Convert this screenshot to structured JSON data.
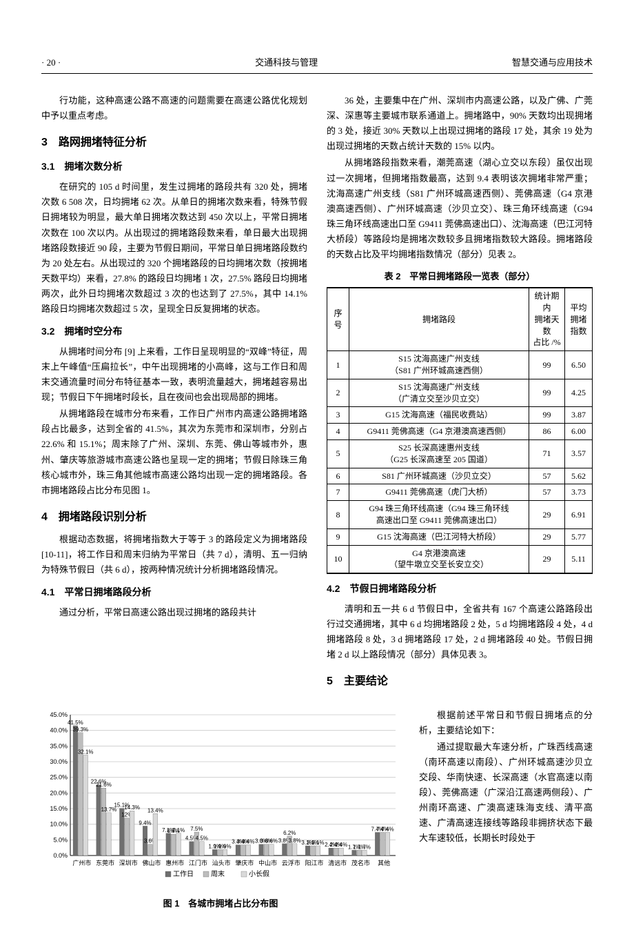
{
  "header": {
    "left": "· 20 ·",
    "center": "交通科技与管理",
    "right": "智慧交通与应用技术"
  },
  "left_column": {
    "p0": "行功能，这种高速公路不高速的问题需要在高速公路优化规划中予以重点考虑。",
    "sec3": "3　路网拥堵特征分析",
    "sub31": "3.1　拥堵次数分析",
    "p31a": "在研究的 105 d 时间里，发生过拥堵的路段共有 320 处，拥堵次数 6 508 次，日均拥堵 62 次。从单日的拥堵次数来看，特殊节假日拥堵较为明显，最大单日拥堵次数达到 450 次以上，平常日拥堵次数在 100 次以内。从出现过的拥堵路段数来看，单日最大出现拥堵路段数接近 90 段，主要为节假日期间，平常日单日拥堵路段数约为 20 处左右。从出现过的 320 个拥堵路段的日均拥堵次数（按拥堵天数平均）来看，27.8% 的路段日均拥堵 1 次，27.5% 路段日均拥堵两次，此外日均拥堵次数超过 3 次的也达到了 27.5%，其中 14.1% 路段日均拥堵次数超过 5 次，呈现全日反复拥堵的状态。",
    "sub32": "3.2　拥堵时空分布",
    "p32a": "从拥堵时间分布 [9] 上来看，工作日呈现明显的“双峰”特征，周末上午峰值“压扁拉长”，中午出现拥堵的小高峰，这与工作日和周末交通流量时间分布特征基本一致，表明流量越大，拥堵越容易出现；节假日下午拥堵时段长，且在夜间也会出现局部的拥堵。",
    "p32b": "从拥堵路段在城市分布来看，工作日广州市内高速公路拥堵路段占比最多，达到全省的 41.5%，其次为东莞市和深圳市，分别占 22.6% 和 15.1%；周末除了广州、深圳、东莞、佛山等城市外，惠州、肇庆等旅游城市高速公路也呈现一定的拥堵；节假日除珠三角核心城市外，珠三角其他城市高速公路均出现一定的拥堵路段。各市拥堵路段占比分布见图 1。",
    "sec4": "4　拥堵路段识别分析",
    "p4a": "根据动态数据，将拥堵指数大于等于 3 的路段定义为拥堵路段 [10-11]，将工作日和周末归纳为平常日（共 7 d），清明、五一归纳为特殊节假日（共 6 d），按两种情况统计分析拥堵路段情况。",
    "sub41": "4.1　平常日拥堵路段分析",
    "p41a": "通过分析，平常日高速公路出现过拥堵的路段共计"
  },
  "right_column": {
    "p_r1": "36 处，主要集中在广州、深圳市内高速公路，以及广佛、广莞深、深惠等主要城市联系通道上。拥堵路中，90% 天数均出现拥堵的 3 处，接近 30% 天数以上出现过拥堵的路段 17 处，其余 19 处为出现过拥堵的天数占统计天数的 15% 以内。",
    "p_r2": "从拥堵路段指数来看，潮莞高速（湖心立交以东段）虽仅出现过一次拥堵，但拥堵指数最高，达到 9.4 表明该次拥堵非常严重；沈海高速广州支线（S81 广州环城高速西侧）、莞佛高速（G4 京港澳高速西侧）、广州环城高速（沙贝立交）、珠三角环线高速（G94 珠三角环线高速出口至 G9411 莞佛高速出口）、沈海高速（巴江河特大桥段）等路段均是拥堵次数较多且拥堵指数较大路段。拥堵路段的天数占比及平均拥堵指数情况（部分）见表 2。",
    "table2": {
      "caption": "表 2　平常日拥堵路段一览表（部分）",
      "cols": [
        "序号",
        "拥堵路段",
        "统计期内\n拥堵天数\n占比 /%",
        "平均\n拥堵\n指数"
      ],
      "rows": [
        [
          "1",
          "S15 沈海高速广州支线\n（S81 广州环城高速西侧）",
          "99",
          "6.50"
        ],
        [
          "2",
          "S15 沈海高速广州支线\n（广清立交至沙贝立交）",
          "99",
          "4.25"
        ],
        [
          "3",
          "G15 沈海高速（福民收费站）",
          "99",
          "3.87"
        ],
        [
          "4",
          "G9411 莞佛高速（G4 京港澳高速西侧）",
          "86",
          "6.00"
        ],
        [
          "5",
          "S25 长深高速惠州支线\n（G25 长深高速至 205 国道）",
          "71",
          "3.57"
        ],
        [
          "6",
          "S81 广州环城高速（沙贝立交）",
          "57",
          "5.62"
        ],
        [
          "7",
          "G9411 莞佛高速（虎门大桥）",
          "57",
          "3.73"
        ],
        [
          "8",
          "G94 珠三角环线高速（G94 珠三角环线\n高速出口至 G9411 莞佛高速出口）",
          "29",
          "6.91"
        ],
        [
          "9",
          "G15 沈海高速（巴江河特大桥段）",
          "29",
          "5.77"
        ],
        [
          "10",
          "G4 京港澳高速\n（望牛墩立交至长安立交）",
          "29",
          "5.11"
        ]
      ]
    },
    "sub42": "4.2　节假日拥堵路段分析",
    "p42a": "清明和五一共 6 d 节假日中，全省共有 167 个高速公路路段出行过交通拥堵，其中 6 d 均拥堵路段 2 处，5 d 均拥堵路段 4 处，4 d 拥堵路段 8 处，3 d 拥堵路段 17 处，2 d 拥堵路段 40 处。节假日拥堵 2 d 以上路段情况（部分）具体见表 3。",
    "sec5": "5　主要结论",
    "p5a": "根据前述平常日和节假日拥堵点的分析，主要结论如下：",
    "p5b": "通过提取最大车速分析，广珠西线高速（南环高速以南段）、广州环城高速沙贝立交段、华南快速、长深高速（水官高速以南段）、莞佛高速（广深沿江高速两侧段）、广州南环高速、广澳高速珠海支线、清平高速、广清高速连接线等路段非拥挤状态下最大车速较低，长期长时段处于"
  },
  "chart": {
    "caption": "图 1　各城市拥堵占比分布图",
    "categories": [
      "广州市",
      "东莞市",
      "深圳市",
      "佛山市",
      "惠州市",
      "江门市",
      "汕头市",
      "肇庆市",
      "中山市",
      "云浮市",
      "阳江市",
      "清远市",
      "茂名市",
      "其他"
    ],
    "series": [
      {
        "name": "工作日",
        "values": [
          41.5,
          22.6,
          15.1,
          9.4,
          7.1,
          4.5,
          1.9,
          3.4,
          3.6,
          3.8,
          3.1,
          2.4,
          1.7,
          7.4
        ]
      },
      {
        "name": "周末",
        "values": [
          39.3,
          21.6,
          12.0,
          3.6,
          6.8,
          7.5,
          1.9,
          3.4,
          3.6,
          6.2,
          3.1,
          2.4,
          1.7,
          7.4
        ]
      },
      {
        "name": "小长假",
        "values": [
          32.1,
          13.7,
          14.3,
          13.4,
          7.1,
          4.5,
          1.9,
          3.4,
          3.6,
          3.8,
          3.1,
          2.4,
          1.7,
          7.4
        ]
      }
    ],
    "colors": [
      "#6f6f6f",
      "#bdbdbd",
      "#d9d9d9"
    ],
    "ylim": [
      0,
      45
    ],
    "ystep": 5,
    "grid_color": "#c9c9c9",
    "axis_color": "#000000",
    "label_fontsize": 10,
    "tick_fontsize": 9,
    "legend_labels": [
      "工作日",
      "周末",
      "小长假"
    ]
  }
}
